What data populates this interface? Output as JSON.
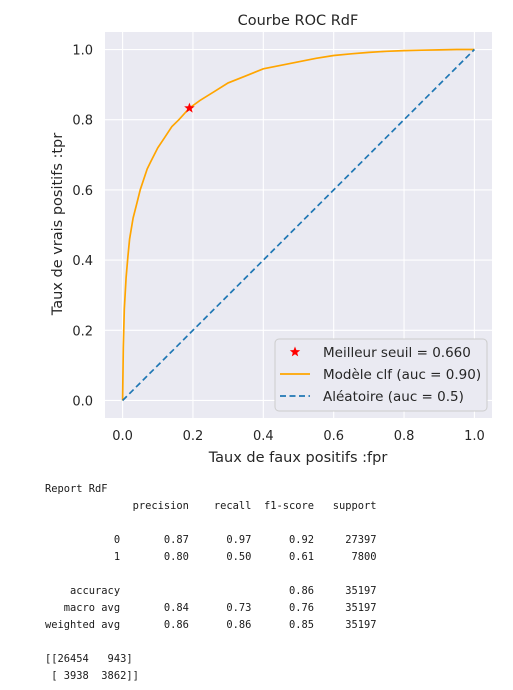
{
  "chart_data": {
    "type": "line",
    "title": "Courbe ROC RdF",
    "xlabel": "Taux de faux positifs :fpr",
    "ylabel": "Taux de vrais positifs :tpr",
    "xlim": [
      -0.05,
      1.05
    ],
    "ylim": [
      -0.05,
      1.05
    ],
    "xticks": [
      "0.0",
      "0.2",
      "0.4",
      "0.6",
      "0.8",
      "1.0"
    ],
    "yticks": [
      "0.0",
      "0.2",
      "0.4",
      "0.6",
      "0.8",
      "1.0"
    ],
    "grid": true,
    "legend_position": "lower-right",
    "series": [
      {
        "name": "Modèle clf (auc = 0.90)",
        "style": "solid",
        "color": "#ffa500",
        "x": [
          0.0,
          0.002,
          0.005,
          0.01,
          0.015,
          0.02,
          0.03,
          0.04,
          0.05,
          0.06,
          0.07,
          0.08,
          0.1,
          0.12,
          0.14,
          0.16,
          0.19,
          0.22,
          0.26,
          0.3,
          0.35,
          0.4,
          0.45,
          0.5,
          0.55,
          0.6,
          0.65,
          0.7,
          0.75,
          0.8,
          0.85,
          0.9,
          0.95,
          1.0
        ],
        "y": [
          0.0,
          0.15,
          0.26,
          0.35,
          0.41,
          0.46,
          0.52,
          0.56,
          0.6,
          0.63,
          0.66,
          0.68,
          0.72,
          0.75,
          0.78,
          0.8,
          0.833,
          0.855,
          0.88,
          0.905,
          0.925,
          0.945,
          0.955,
          0.965,
          0.975,
          0.983,
          0.988,
          0.992,
          0.995,
          0.997,
          0.998,
          0.999,
          1.0,
          1.0
        ]
      },
      {
        "name": "Aléatoire (auc = 0.5)",
        "style": "dashed",
        "color": "#1f77b4",
        "x": [
          0.0,
          1.0
        ],
        "y": [
          0.0,
          1.0
        ]
      }
    ],
    "best_threshold": {
      "name": "Meilleur seuil = 0.660",
      "x": 0.19,
      "y": 0.833,
      "color": "#ff0000",
      "marker": "star"
    }
  },
  "report": {
    "lines": [
      "Report RdF",
      "              precision    recall  f1-score   support",
      "",
      "           0       0.87      0.97      0.92     27397",
      "           1       0.80      0.50      0.61      7800",
      "",
      "    accuracy                           0.86     35197",
      "   macro avg       0.84      0.73      0.76     35197",
      "weighted avg       0.86      0.86      0.85     35197",
      "",
      "[[26454   943]",
      " [ 3938  3862]]"
    ]
  }
}
